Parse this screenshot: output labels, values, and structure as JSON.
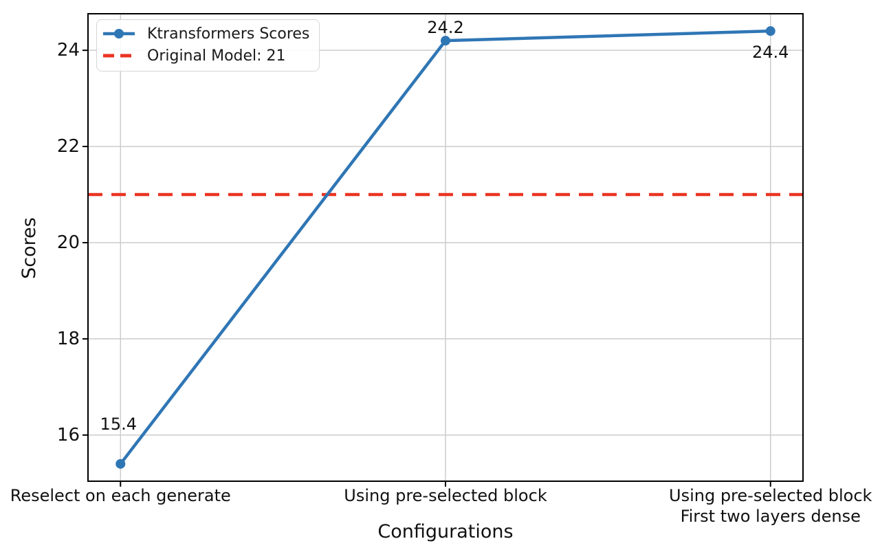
{
  "chart_data": {
    "type": "line",
    "title": "",
    "xlabel": "Configurations",
    "ylabel": "Scores",
    "categories": [
      "Reselect on each generate",
      "Using pre-selected block",
      "Using pre-selected block\nFirst two layers dense"
    ],
    "series": [
      {
        "name": "Ktransformers Scores",
        "values": [
          15.4,
          24.2,
          24.4
        ],
        "data_labels": [
          "15.4",
          "24.2",
          "24.4"
        ],
        "color": "#2f76b5",
        "marker": "circle",
        "line_style": "solid"
      }
    ],
    "reference_line": {
      "name": "Original Model: 21",
      "value": 21,
      "color": "#ea3423",
      "line_style": "dashed"
    },
    "yticks": [
      16,
      18,
      20,
      22,
      24
    ],
    "ylim": [
      15.04,
      24.76
    ],
    "xlim": [
      -0.1,
      2.1
    ],
    "grid": true,
    "grid_color": "#cccccc",
    "spine_color": "#000000",
    "legend_position": "upper left"
  }
}
